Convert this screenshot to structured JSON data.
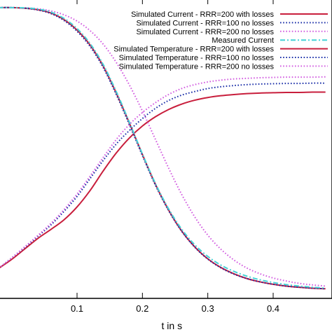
{
  "chart_data": {
    "type": "line",
    "title": "",
    "xlabel": "t in s",
    "ylabel": "",
    "xlim": [
      -0.02,
      0.49
    ],
    "ylim": [
      0,
      1
    ],
    "grid": false,
    "legend_position": "top-right",
    "x_ticks": [
      0.1,
      0.2,
      0.3,
      0.4
    ],
    "x_tick_labels": [
      "0.1",
      "0.2",
      "0.3",
      "0.4"
    ],
    "series": [
      {
        "name": "Simulated Current - RRR=200 with losses",
        "color": "#c81e3c",
        "style": "solid",
        "x": [
          -0.02,
          0.0,
          0.02,
          0.04,
          0.06,
          0.08,
          0.1,
          0.12,
          0.14,
          0.16,
          0.18,
          0.2,
          0.22,
          0.24,
          0.26,
          0.28,
          0.3,
          0.32,
          0.34,
          0.36,
          0.38,
          0.4,
          0.42,
          0.44,
          0.46,
          0.48
        ],
        "y": [
          0.97,
          0.97,
          0.968,
          0.963,
          0.952,
          0.93,
          0.895,
          0.845,
          0.775,
          0.685,
          0.585,
          0.48,
          0.38,
          0.295,
          0.225,
          0.172,
          0.132,
          0.103,
          0.082,
          0.066,
          0.055,
          0.047,
          0.041,
          0.037,
          0.034,
          0.032
        ]
      },
      {
        "name": "Simulated Current - RRR=100 no losses",
        "color": "#1a2ea8",
        "style": "dotted",
        "x": [
          -0.02,
          0.0,
          0.02,
          0.04,
          0.06,
          0.08,
          0.1,
          0.12,
          0.14,
          0.16,
          0.18,
          0.2,
          0.22,
          0.24,
          0.26,
          0.28,
          0.3,
          0.32,
          0.34,
          0.36,
          0.38,
          0.4,
          0.42,
          0.44,
          0.46,
          0.48
        ],
        "y": [
          0.97,
          0.97,
          0.968,
          0.962,
          0.95,
          0.927,
          0.891,
          0.84,
          0.77,
          0.68,
          0.58,
          0.476,
          0.377,
          0.293,
          0.224,
          0.171,
          0.131,
          0.102,
          0.081,
          0.066,
          0.055,
          0.047,
          0.041,
          0.037,
          0.034,
          0.032
        ]
      },
      {
        "name": "Simulated Current - RRR=200 no losses",
        "color": "#d25ce0",
        "style": "dotted",
        "x": [
          -0.02,
          0.0,
          0.02,
          0.04,
          0.06,
          0.08,
          0.1,
          0.12,
          0.14,
          0.16,
          0.18,
          0.2,
          0.22,
          0.24,
          0.26,
          0.28,
          0.3,
          0.32,
          0.34,
          0.36,
          0.38,
          0.4,
          0.42,
          0.44,
          0.46,
          0.48
        ],
        "y": [
          0.97,
          0.97,
          0.969,
          0.966,
          0.959,
          0.946,
          0.925,
          0.893,
          0.848,
          0.787,
          0.712,
          0.625,
          0.53,
          0.435,
          0.347,
          0.272,
          0.211,
          0.164,
          0.128,
          0.101,
          0.082,
          0.068,
          0.058,
          0.05,
          0.045,
          0.041
        ]
      },
      {
        "name": "Measured Current",
        "color": "#45d2d6",
        "style": "dashdot",
        "x": [
          -0.02,
          0.0,
          0.02,
          0.04,
          0.06,
          0.08,
          0.1,
          0.12,
          0.14,
          0.16,
          0.18,
          0.2,
          0.22,
          0.24,
          0.26,
          0.28,
          0.3,
          0.32,
          0.34,
          0.36,
          0.38,
          0.4,
          0.42,
          0.44,
          0.46,
          0.48
        ],
        "y": [
          0.97,
          0.97,
          0.969,
          0.965,
          0.955,
          0.934,
          0.9,
          0.85,
          0.78,
          0.69,
          0.588,
          0.482,
          0.383,
          0.299,
          0.231,
          0.179,
          0.14,
          0.111,
          0.09,
          0.074,
          0.062,
          0.053,
          0.046,
          0.041,
          0.037,
          0.034
        ]
      },
      {
        "name": "Simulated Temperature - RRR=200 with losses",
        "color": "#c81e3c",
        "style": "solid",
        "x": [
          -0.02,
          0.0,
          0.02,
          0.04,
          0.06,
          0.08,
          0.1,
          0.12,
          0.14,
          0.16,
          0.18,
          0.2,
          0.22,
          0.24,
          0.26,
          0.28,
          0.3,
          0.32,
          0.34,
          0.36,
          0.38,
          0.4,
          0.42,
          0.44,
          0.46,
          0.48
        ],
        "y": [
          0.1,
          0.13,
          0.165,
          0.2,
          0.23,
          0.262,
          0.305,
          0.36,
          0.425,
          0.485,
          0.535,
          0.575,
          0.606,
          0.63,
          0.648,
          0.661,
          0.67,
          0.676,
          0.68,
          0.683,
          0.685,
          0.686,
          0.687,
          0.687,
          0.688,
          0.688
        ]
      },
      {
        "name": "Simulated Temperature - RRR=100 no losses",
        "color": "#1a2ea8",
        "style": "dotted",
        "x": [
          -0.02,
          0.0,
          0.02,
          0.04,
          0.06,
          0.08,
          0.1,
          0.12,
          0.14,
          0.16,
          0.18,
          0.2,
          0.22,
          0.24,
          0.26,
          0.28,
          0.3,
          0.32,
          0.34,
          0.36,
          0.38,
          0.4,
          0.42,
          0.44,
          0.46,
          0.48
        ],
        "y": [
          0.1,
          0.135,
          0.17,
          0.207,
          0.245,
          0.29,
          0.34,
          0.4,
          0.46,
          0.515,
          0.56,
          0.6,
          0.634,
          0.66,
          0.678,
          0.69,
          0.7,
          0.706,
          0.71,
          0.713,
          0.715,
          0.716,
          0.717,
          0.717,
          0.718,
          0.718
        ]
      },
      {
        "name": "Simulated Temperature - RRR=200 no losses",
        "color": "#d25ce0",
        "style": "dotted",
        "x": [
          -0.02,
          0.0,
          0.02,
          0.04,
          0.06,
          0.08,
          0.1,
          0.12,
          0.14,
          0.16,
          0.18,
          0.2,
          0.22,
          0.24,
          0.26,
          0.28,
          0.3,
          0.32,
          0.34,
          0.36,
          0.38,
          0.4,
          0.42,
          0.44,
          0.46,
          0.48
        ],
        "y": [
          0.1,
          0.135,
          0.172,
          0.21,
          0.25,
          0.296,
          0.348,
          0.408,
          0.47,
          0.53,
          0.58,
          0.62,
          0.653,
          0.68,
          0.7,
          0.713,
          0.722,
          0.728,
          0.732,
          0.734,
          0.736,
          0.737,
          0.738,
          0.738,
          0.738,
          0.739
        ]
      }
    ]
  }
}
